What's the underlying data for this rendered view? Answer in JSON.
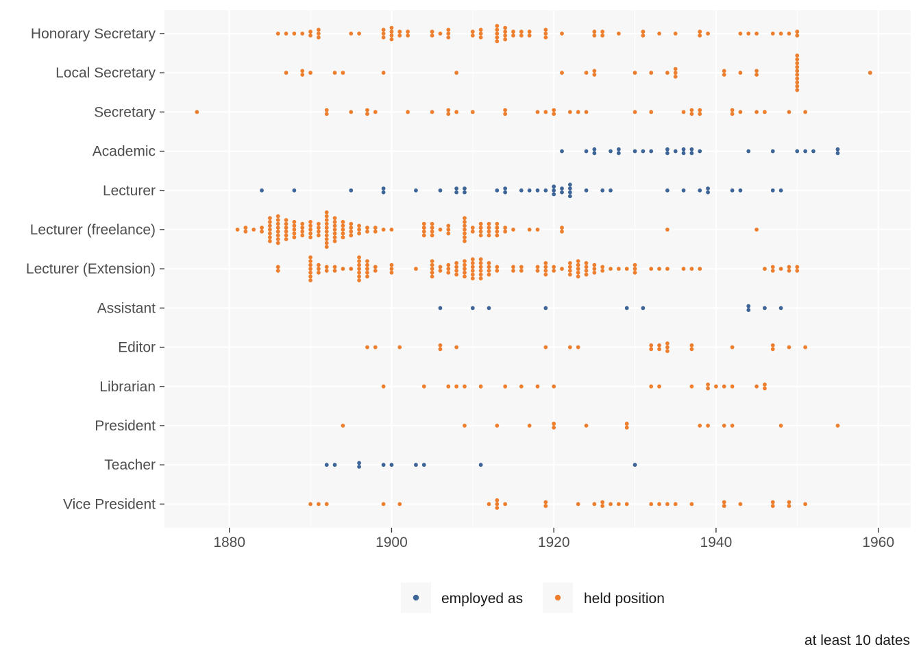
{
  "chart_data": {
    "type": "scatter",
    "subtype": "dot-strip (beeswarm)",
    "xlim": [
      1872,
      1964
    ],
    "x_ticks": [
      1880,
      1900,
      1920,
      1940,
      1960
    ],
    "grid": true,
    "legend_position": "bottom",
    "caption": "at least 10 dates",
    "colors": {
      "employed as": "#3d6598",
      "held position": "#ed7f2e",
      "panel": "#f7f7f7",
      "grid": "#ffffff"
    },
    "series": [
      {
        "name": "employed as"
      },
      {
        "name": "held position"
      }
    ],
    "categories": [
      "Honorary Secretary",
      "Local Secretary",
      "Secretary",
      "Academic",
      "Lecturer",
      "Lecturer (freelance)",
      "Lecturer (Extension)",
      "Assistant",
      "Editor",
      "Librarian",
      "President",
      "Teacher",
      "Vice President"
    ],
    "rows": [
      {
        "category": "Honorary Secretary",
        "series": "held position",
        "counts": [
          [
            1886,
            1
          ],
          [
            1887,
            1
          ],
          [
            1888,
            1
          ],
          [
            1889,
            1
          ],
          [
            1890,
            2
          ],
          [
            1891,
            3
          ],
          [
            1895,
            1
          ],
          [
            1896,
            1
          ],
          [
            1899,
            3
          ],
          [
            1900,
            4
          ],
          [
            1901,
            2
          ],
          [
            1902,
            2
          ],
          [
            1905,
            2
          ],
          [
            1906,
            1
          ],
          [
            1907,
            3
          ],
          [
            1910,
            2
          ],
          [
            1911,
            3
          ],
          [
            1913,
            5
          ],
          [
            1914,
            4
          ],
          [
            1915,
            2
          ],
          [
            1916,
            2
          ],
          [
            1917,
            2
          ],
          [
            1919,
            3
          ],
          [
            1921,
            1
          ],
          [
            1925,
            2
          ],
          [
            1926,
            2
          ],
          [
            1928,
            1
          ],
          [
            1931,
            2
          ],
          [
            1933,
            1
          ],
          [
            1935,
            1
          ],
          [
            1938,
            2
          ],
          [
            1939,
            1
          ],
          [
            1943,
            1
          ],
          [
            1944,
            1
          ],
          [
            1945,
            1
          ],
          [
            1947,
            1
          ],
          [
            1948,
            1
          ],
          [
            1949,
            1
          ],
          [
            1950,
            2
          ]
        ]
      },
      {
        "category": "Local Secretary",
        "series": "held position",
        "counts": [
          [
            1887,
            1
          ],
          [
            1889,
            2
          ],
          [
            1890,
            1
          ],
          [
            1893,
            1
          ],
          [
            1894,
            1
          ],
          [
            1899,
            1
          ],
          [
            1908,
            1
          ],
          [
            1921,
            1
          ],
          [
            1924,
            1
          ],
          [
            1925,
            2
          ],
          [
            1930,
            1
          ],
          [
            1932,
            1
          ],
          [
            1934,
            1
          ],
          [
            1935,
            3
          ],
          [
            1941,
            2
          ],
          [
            1943,
            1
          ],
          [
            1945,
            2
          ],
          [
            1950,
            10
          ],
          [
            1959,
            1
          ]
        ]
      },
      {
        "category": "Secretary",
        "series": "held position",
        "counts": [
          [
            1876,
            1
          ],
          [
            1892,
            2
          ],
          [
            1895,
            1
          ],
          [
            1897,
            2
          ],
          [
            1898,
            1
          ],
          [
            1902,
            1
          ],
          [
            1905,
            1
          ],
          [
            1907,
            2
          ],
          [
            1908,
            1
          ],
          [
            1910,
            1
          ],
          [
            1914,
            2
          ],
          [
            1918,
            1
          ],
          [
            1919,
            1
          ],
          [
            1920,
            2
          ],
          [
            1922,
            1
          ],
          [
            1923,
            1
          ],
          [
            1924,
            1
          ],
          [
            1930,
            1
          ],
          [
            1932,
            1
          ],
          [
            1936,
            1
          ],
          [
            1937,
            2
          ],
          [
            1938,
            2
          ],
          [
            1942,
            2
          ],
          [
            1943,
            1
          ],
          [
            1945,
            1
          ],
          [
            1946,
            1
          ],
          [
            1949,
            1
          ],
          [
            1951,
            1
          ]
        ]
      },
      {
        "category": "Academic",
        "series": "employed as",
        "counts": [
          [
            1921,
            1
          ],
          [
            1924,
            1
          ],
          [
            1925,
            2
          ],
          [
            1927,
            1
          ],
          [
            1928,
            2
          ],
          [
            1930,
            1
          ],
          [
            1931,
            1
          ],
          [
            1932,
            1
          ],
          [
            1934,
            2
          ],
          [
            1935,
            1
          ],
          [
            1936,
            2
          ],
          [
            1937,
            2
          ],
          [
            1938,
            1
          ],
          [
            1944,
            1
          ],
          [
            1947,
            1
          ],
          [
            1950,
            1
          ],
          [
            1951,
            1
          ],
          [
            1952,
            1
          ],
          [
            1955,
            2
          ]
        ]
      },
      {
        "category": "Lecturer",
        "series": "employed as",
        "counts": [
          [
            1884,
            1
          ],
          [
            1888,
            1
          ],
          [
            1895,
            1
          ],
          [
            1899,
            2
          ],
          [
            1903,
            1
          ],
          [
            1906,
            1
          ],
          [
            1908,
            2
          ],
          [
            1909,
            2
          ],
          [
            1913,
            1
          ],
          [
            1914,
            2
          ],
          [
            1916,
            1
          ],
          [
            1917,
            1
          ],
          [
            1918,
            1
          ],
          [
            1919,
            1
          ],
          [
            1920,
            3
          ],
          [
            1921,
            2
          ],
          [
            1922,
            4
          ],
          [
            1924,
            1
          ],
          [
            1926,
            1
          ],
          [
            1927,
            1
          ],
          [
            1934,
            1
          ],
          [
            1936,
            1
          ],
          [
            1938,
            1
          ],
          [
            1939,
            2
          ],
          [
            1942,
            1
          ],
          [
            1943,
            1
          ],
          [
            1947,
            1
          ],
          [
            1948,
            1
          ]
        ]
      },
      {
        "category": "Lecturer (freelance)",
        "series": "held position",
        "counts": [
          [
            1881,
            1
          ],
          [
            1882,
            2
          ],
          [
            1883,
            1
          ],
          [
            1884,
            2
          ],
          [
            1885,
            7
          ],
          [
            1886,
            8
          ],
          [
            1887,
            6
          ],
          [
            1888,
            5
          ],
          [
            1889,
            4
          ],
          [
            1890,
            5
          ],
          [
            1891,
            4
          ],
          [
            1892,
            10
          ],
          [
            1893,
            7
          ],
          [
            1894,
            5
          ],
          [
            1895,
            4
          ],
          [
            1896,
            3
          ],
          [
            1897,
            2
          ],
          [
            1898,
            2
          ],
          [
            1899,
            1
          ],
          [
            1900,
            1
          ],
          [
            1904,
            4
          ],
          [
            1905,
            4
          ],
          [
            1906,
            1
          ],
          [
            1907,
            3
          ],
          [
            1909,
            7
          ],
          [
            1910,
            2
          ],
          [
            1911,
            4
          ],
          [
            1912,
            4
          ],
          [
            1913,
            4
          ],
          [
            1914,
            2
          ],
          [
            1915,
            1
          ],
          [
            1917,
            1
          ],
          [
            1918,
            1
          ],
          [
            1921,
            2
          ],
          [
            1934,
            1
          ],
          [
            1945,
            1
          ]
        ]
      },
      {
        "category": "Lecturer (Extension)",
        "series": "held position",
        "counts": [
          [
            1886,
            2
          ],
          [
            1890,
            7
          ],
          [
            1891,
            3
          ],
          [
            1892,
            2
          ],
          [
            1893,
            2
          ],
          [
            1894,
            1
          ],
          [
            1895,
            1
          ],
          [
            1896,
            7
          ],
          [
            1897,
            5
          ],
          [
            1898,
            2
          ],
          [
            1900,
            3
          ],
          [
            1903,
            1
          ],
          [
            1905,
            5
          ],
          [
            1906,
            2
          ],
          [
            1907,
            3
          ],
          [
            1908,
            4
          ],
          [
            1909,
            5
          ],
          [
            1910,
            6
          ],
          [
            1911,
            6
          ],
          [
            1912,
            4
          ],
          [
            1913,
            2
          ],
          [
            1915,
            2
          ],
          [
            1916,
            2
          ],
          [
            1918,
            2
          ],
          [
            1919,
            4
          ],
          [
            1920,
            2
          ],
          [
            1921,
            1
          ],
          [
            1922,
            4
          ],
          [
            1923,
            5
          ],
          [
            1924,
            4
          ],
          [
            1925,
            3
          ],
          [
            1926,
            2
          ],
          [
            1927,
            1
          ],
          [
            1928,
            1
          ],
          [
            1929,
            1
          ],
          [
            1930,
            3
          ],
          [
            1932,
            1
          ],
          [
            1933,
            1
          ],
          [
            1934,
            1
          ],
          [
            1936,
            1
          ],
          [
            1937,
            1
          ],
          [
            1938,
            1
          ],
          [
            1946,
            1
          ],
          [
            1947,
            2
          ],
          [
            1948,
            1
          ],
          [
            1949,
            2
          ],
          [
            1950,
            2
          ]
        ]
      },
      {
        "category": "Assistant",
        "series": "employed as",
        "counts": [
          [
            1906,
            1
          ],
          [
            1910,
            1
          ],
          [
            1912,
            1
          ],
          [
            1919,
            1
          ],
          [
            1929,
            1
          ],
          [
            1931,
            1
          ],
          [
            1944,
            2
          ],
          [
            1946,
            1
          ],
          [
            1948,
            1
          ]
        ]
      },
      {
        "category": "Editor",
        "series": "held position",
        "counts": [
          [
            1897,
            1
          ],
          [
            1898,
            1
          ],
          [
            1901,
            1
          ],
          [
            1906,
            2
          ],
          [
            1908,
            1
          ],
          [
            1919,
            1
          ],
          [
            1922,
            1
          ],
          [
            1923,
            1
          ],
          [
            1932,
            2
          ],
          [
            1933,
            2
          ],
          [
            1934,
            3
          ],
          [
            1937,
            2
          ],
          [
            1942,
            1
          ],
          [
            1947,
            2
          ],
          [
            1949,
            1
          ],
          [
            1951,
            1
          ]
        ]
      },
      {
        "category": "Librarian",
        "series": "held position",
        "counts": [
          [
            1899,
            1
          ],
          [
            1904,
            1
          ],
          [
            1907,
            1
          ],
          [
            1908,
            1
          ],
          [
            1909,
            1
          ],
          [
            1911,
            1
          ],
          [
            1914,
            1
          ],
          [
            1916,
            1
          ],
          [
            1918,
            1
          ],
          [
            1920,
            1
          ],
          [
            1932,
            1
          ],
          [
            1933,
            1
          ],
          [
            1937,
            1
          ],
          [
            1939,
            2
          ],
          [
            1940,
            1
          ],
          [
            1941,
            1
          ],
          [
            1942,
            1
          ],
          [
            1945,
            1
          ],
          [
            1946,
            2
          ]
        ]
      },
      {
        "category": "President",
        "series": "held position",
        "counts": [
          [
            1894,
            1
          ],
          [
            1909,
            1
          ],
          [
            1913,
            1
          ],
          [
            1917,
            1
          ],
          [
            1920,
            2
          ],
          [
            1924,
            1
          ],
          [
            1929,
            2
          ],
          [
            1938,
            1
          ],
          [
            1939,
            1
          ],
          [
            1941,
            1
          ],
          [
            1942,
            1
          ],
          [
            1948,
            1
          ],
          [
            1955,
            1
          ]
        ]
      },
      {
        "category": "Teacher",
        "series": "employed as",
        "counts": [
          [
            1892,
            1
          ],
          [
            1893,
            1
          ],
          [
            1896,
            2
          ],
          [
            1899,
            1
          ],
          [
            1900,
            1
          ],
          [
            1903,
            1
          ],
          [
            1904,
            1
          ],
          [
            1911,
            1
          ],
          [
            1930,
            1
          ]
        ]
      },
      {
        "category": "Vice President",
        "series": "held position",
        "counts": [
          [
            1890,
            1
          ],
          [
            1891,
            1
          ],
          [
            1892,
            1
          ],
          [
            1899,
            1
          ],
          [
            1901,
            1
          ],
          [
            1912,
            1
          ],
          [
            1913,
            3
          ],
          [
            1914,
            1
          ],
          [
            1919,
            2
          ],
          [
            1923,
            1
          ],
          [
            1925,
            1
          ],
          [
            1926,
            2
          ],
          [
            1927,
            1
          ],
          [
            1928,
            1
          ],
          [
            1929,
            1
          ],
          [
            1932,
            1
          ],
          [
            1933,
            1
          ],
          [
            1934,
            1
          ],
          [
            1935,
            1
          ],
          [
            1937,
            1
          ],
          [
            1941,
            2
          ],
          [
            1943,
            1
          ],
          [
            1947,
            2
          ],
          [
            1949,
            2
          ],
          [
            1951,
            1
          ]
        ]
      }
    ]
  }
}
